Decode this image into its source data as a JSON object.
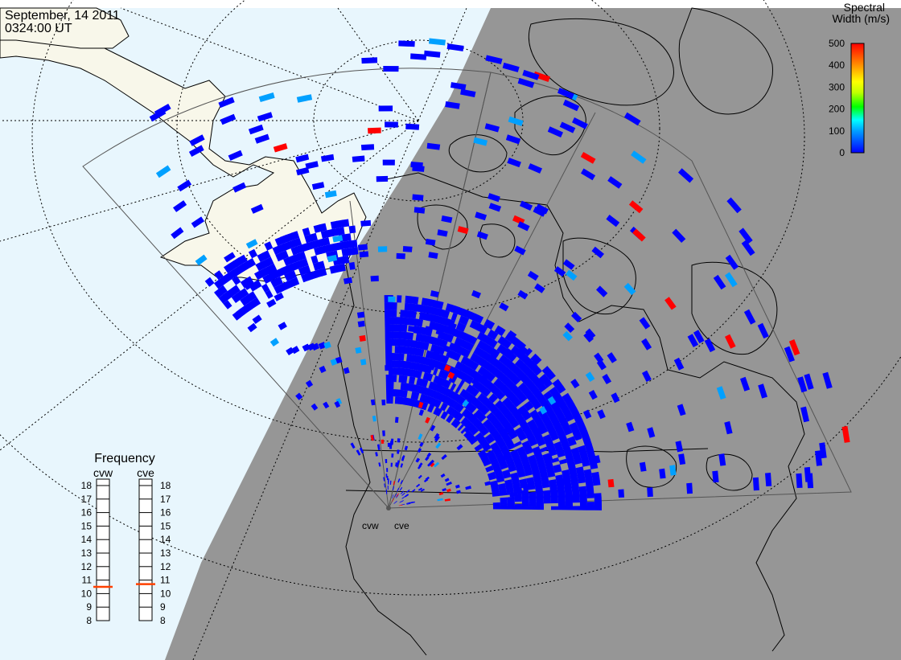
{
  "header": {
    "date": "September, 14 2011",
    "time": "0324:00 UT"
  },
  "colorbar": {
    "title_line1": "Spectral",
    "title_line2": "Width (m/s)",
    "ticks": [
      "500",
      "400",
      "300",
      "200",
      "100",
      "0"
    ],
    "min": 0,
    "max": 500,
    "colors": [
      "#0000ff",
      "#00a0ff",
      "#00ffff",
      "#00ff00",
      "#c0ff00",
      "#ffff00",
      "#ffa000",
      "#ff0000"
    ]
  },
  "frequency_panel": {
    "title": "Frequency",
    "radars": [
      {
        "name": "cvw",
        "value_mhz": 10.5
      },
      {
        "name": "cve",
        "value_mhz": 10.7
      }
    ],
    "scale": [
      "18",
      "17",
      "16",
      "15",
      "14",
      "13",
      "12",
      "11",
      "10",
      "9",
      "8"
    ],
    "range": [
      8,
      18
    ]
  },
  "stations": {
    "west": "cvw",
    "east": "cve"
  },
  "colors": {
    "night_side": "#969696",
    "day_ocean": "#e8f6fd",
    "day_land": "#f8f7ea",
    "high_value": "#ff0000",
    "medium_value": "#00a0ff",
    "low_value": "#0000ff",
    "frequency_marker": "#ff4000"
  }
}
